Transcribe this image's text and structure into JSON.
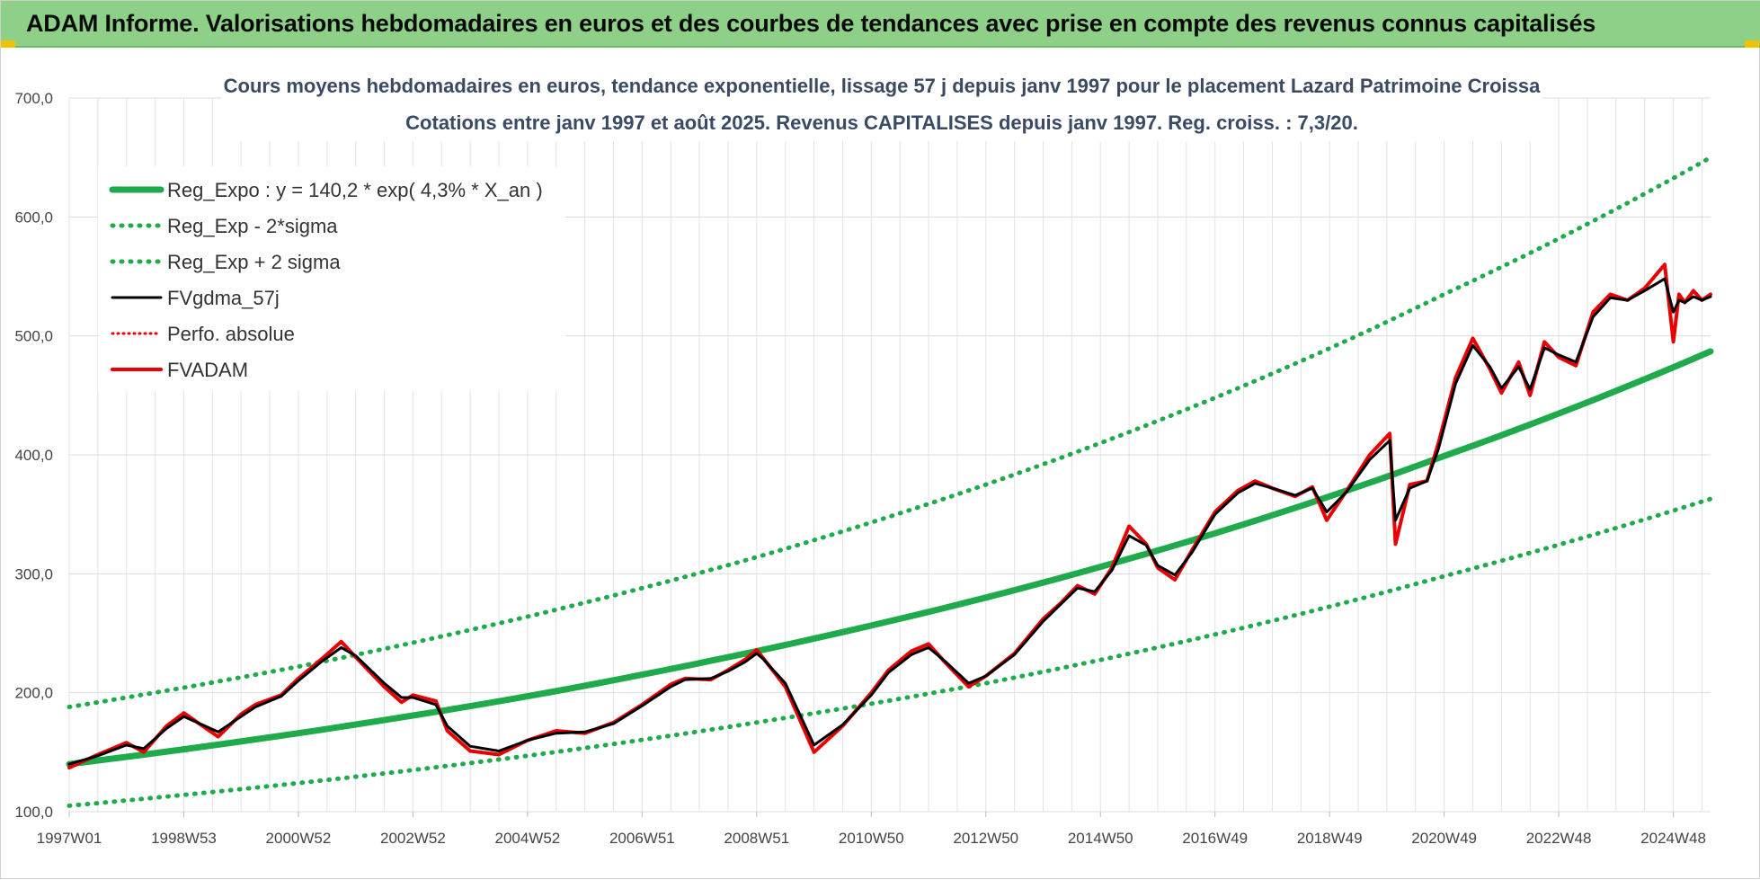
{
  "banner": {
    "title": "ADAM Informe. Valorisations hebdomadaires en euros et des courbes de tendances avec prise en compte des revenus connus capitalisés"
  },
  "colors": {
    "banner_bg": "#8fd088",
    "reg_expo": "#1faa4b",
    "sigma_band": "#1faa4b",
    "fvgdma": "#000000",
    "fvadam": "#e80000",
    "perfo": "#e80000"
  },
  "chart_data": {
    "type": "line",
    "title": "Cours moyens hebdomadaires en euros, tendance exponentielle, lissage 57 j depuis janv 1997 pour le placement Lazard Patrimoine Croissa",
    "subtitle": "Cotations entre janv 1997 et août 2025. Revenus CAPITALISES depuis janv 1997. Reg. croiss. : 7,3/20.",
    "xlabel": "",
    "ylabel": "",
    "x_ticks": [
      "1997W01",
      "1998W53",
      "2000W52",
      "2002W52",
      "2004W52",
      "2006W51",
      "2008W51",
      "2010W50",
      "2012W50",
      "2014W50",
      "2016W49",
      "2018W49",
      "2020W49",
      "2022W48",
      "2024W48"
    ],
    "x_tick_years": [
      1997.0,
      1999.0,
      2001.0,
      2003.0,
      2005.0,
      2007.0,
      2009.0,
      2011.0,
      2013.0,
      2015.0,
      2017.0,
      2019.0,
      2021.0,
      2023.0,
      2025.0
    ],
    "xlim": [
      1997.0,
      2025.65
    ],
    "y_ticks": [
      "100,0",
      "200,0",
      "300,0",
      "400,0",
      "500,0",
      "600,0",
      "700,0"
    ],
    "y_tick_values": [
      100,
      200,
      300,
      400,
      500,
      600,
      700
    ],
    "ylim": [
      100,
      700
    ],
    "grid": true,
    "legend_position": "top-left",
    "legend": [
      {
        "key": "reg_expo",
        "label": "Reg_Expo : y = 140,2 * exp( 4,3% *  X_an )",
        "style": "solid-thick"
      },
      {
        "key": "reg_minus",
        "label": "Reg_Exp - 2*sigma",
        "style": "dotted"
      },
      {
        "key": "reg_plus",
        "label": "Reg_Exp + 2 sigma",
        "style": "dotted"
      },
      {
        "key": "fvgdma",
        "label": "FVgdma_57j",
        "style": "solid"
      },
      {
        "key": "perfo",
        "label": "Perfo. absolue",
        "style": "dotted"
      },
      {
        "key": "fvadam",
        "label": "FVADAM",
        "style": "solid-thick"
      }
    ],
    "series": [
      {
        "name": "Reg_Expo : y = 140,2 * exp( 4,3% *  X_an )",
        "key": "reg_expo",
        "x": [
          1997.0,
          2001.0,
          2005.0,
          2009.0,
          2013.0,
          2017.0,
          2021.0,
          2025.65
        ],
        "y": [
          140,
          166,
          197,
          235,
          280,
          334,
          399,
          487
        ]
      },
      {
        "name": "Reg_Exp - 2*sigma",
        "key": "reg_minus",
        "x": [
          1997.0,
          2001.0,
          2005.0,
          2009.0,
          2013.0,
          2017.0,
          2021.0,
          2025.65
        ],
        "y": [
          105,
          124,
          147,
          175,
          208,
          249,
          298,
          363
        ]
      },
      {
        "name": "Reg_Exp + 2 sigma",
        "key": "reg_plus",
        "x": [
          1997.0,
          2001.0,
          2005.0,
          2009.0,
          2013.0,
          2017.0,
          2021.0,
          2025.65
        ],
        "y": [
          188,
          222,
          264,
          314,
          375,
          448,
          535,
          650
        ]
      },
      {
        "name": "FVADAM",
        "key": "fvadam",
        "x": [
          1997.0,
          1997.5,
          1998.0,
          1998.3,
          1998.7,
          1999.0,
          1999.6,
          2000.0,
          2000.25,
          2000.7,
          2001.0,
          2001.4,
          2001.75,
          2002.0,
          2002.5,
          2002.8,
          2003.0,
          2003.4,
          2003.6,
          2004.0,
          2004.5,
          2005.0,
          2005.5,
          2006.0,
          2006.5,
          2007.0,
          2007.5,
          2007.75,
          2008.2,
          2008.5,
          2008.8,
          2009.0,
          2009.1,
          2009.5,
          2010.0,
          2010.5,
          2011.0,
          2011.3,
          2011.7,
          2012.0,
          2012.3,
          2012.7,
          2013.0,
          2013.5,
          2014.0,
          2014.3,
          2014.6,
          2014.9,
          2015.2,
          2015.5,
          2015.8,
          2016.0,
          2016.3,
          2016.6,
          2017.0,
          2017.4,
          2017.7,
          2018.0,
          2018.4,
          2018.7,
          2018.95,
          2019.3,
          2019.7,
          2020.05,
          2020.15,
          2020.4,
          2020.7,
          2020.9,
          2021.2,
          2021.5,
          2021.8,
          2022.0,
          2022.3,
          2022.5,
          2022.75,
          2023.0,
          2023.3,
          2023.6,
          2023.9,
          2024.2,
          2024.5,
          2024.85,
          2025.0,
          2025.1,
          2025.2,
          2025.35,
          2025.5,
          2025.65
        ],
        "y": [
          137,
          148,
          158,
          150,
          172,
          183,
          163,
          182,
          190,
          198,
          212,
          228,
          243,
          230,
          205,
          192,
          198,
          193,
          168,
          151,
          148,
          160,
          168,
          166,
          175,
          190,
          207,
          212,
          211,
          219,
          228,
          236,
          230,
          205,
          150,
          172,
          200,
          219,
          235,
          241,
          225,
          205,
          214,
          233,
          262,
          275,
          290,
          283,
          305,
          340,
          325,
          305,
          295,
          320,
          352,
          370,
          378,
          372,
          365,
          373,
          345,
          370,
          400,
          418,
          325,
          375,
          378,
          410,
          465,
          498,
          472,
          452,
          478,
          450,
          495,
          482,
          475,
          520,
          535,
          530,
          540,
          560,
          495,
          535,
          528,
          538,
          530,
          535
        ]
      },
      {
        "name": "FVgdma_57j",
        "key": "fvgdma",
        "x": [
          1997.0,
          1997.5,
          1998.0,
          1998.3,
          1998.7,
          1999.0,
          1999.6,
          2000.0,
          2000.25,
          2000.7,
          2001.0,
          2001.4,
          2001.75,
          2002.0,
          2002.5,
          2002.8,
          2003.0,
          2003.4,
          2003.6,
          2004.0,
          2004.5,
          2005.0,
          2005.5,
          2006.0,
          2006.5,
          2007.0,
          2007.5,
          2007.75,
          2008.2,
          2008.5,
          2008.8,
          2009.0,
          2009.1,
          2009.5,
          2010.0,
          2010.5,
          2011.0,
          2011.3,
          2011.7,
          2012.0,
          2012.3,
          2012.7,
          2013.0,
          2013.5,
          2014.0,
          2014.3,
          2014.6,
          2014.9,
          2015.2,
          2015.5,
          2015.8,
          2016.0,
          2016.3,
          2016.6,
          2017.0,
          2017.4,
          2017.7,
          2018.0,
          2018.4,
          2018.7,
          2018.95,
          2019.3,
          2019.7,
          2020.05,
          2020.15,
          2020.4,
          2020.7,
          2020.9,
          2021.2,
          2021.5,
          2021.8,
          2022.0,
          2022.3,
          2022.5,
          2022.75,
          2023.0,
          2023.3,
          2023.6,
          2023.9,
          2024.2,
          2024.5,
          2024.85,
          2025.0,
          2025.1,
          2025.2,
          2025.35,
          2025.5,
          2025.65
        ],
        "y": [
          140,
          147,
          156,
          153,
          170,
          180,
          167,
          180,
          188,
          197,
          210,
          226,
          238,
          231,
          208,
          196,
          196,
          190,
          172,
          155,
          151,
          160,
          166,
          167,
          174,
          189,
          205,
          211,
          212,
          218,
          226,
          233,
          229,
          208,
          156,
          173,
          198,
          217,
          232,
          238,
          226,
          208,
          214,
          232,
          260,
          274,
          288,
          285,
          303,
          332,
          324,
          307,
          299,
          318,
          350,
          368,
          376,
          372,
          366,
          372,
          352,
          369,
          396,
          412,
          345,
          372,
          378,
          405,
          460,
          492,
          474,
          456,
          474,
          455,
          490,
          484,
          478,
          516,
          532,
          530,
          538,
          548,
          520,
          530,
          528,
          533,
          530,
          533
        ]
      }
    ]
  }
}
